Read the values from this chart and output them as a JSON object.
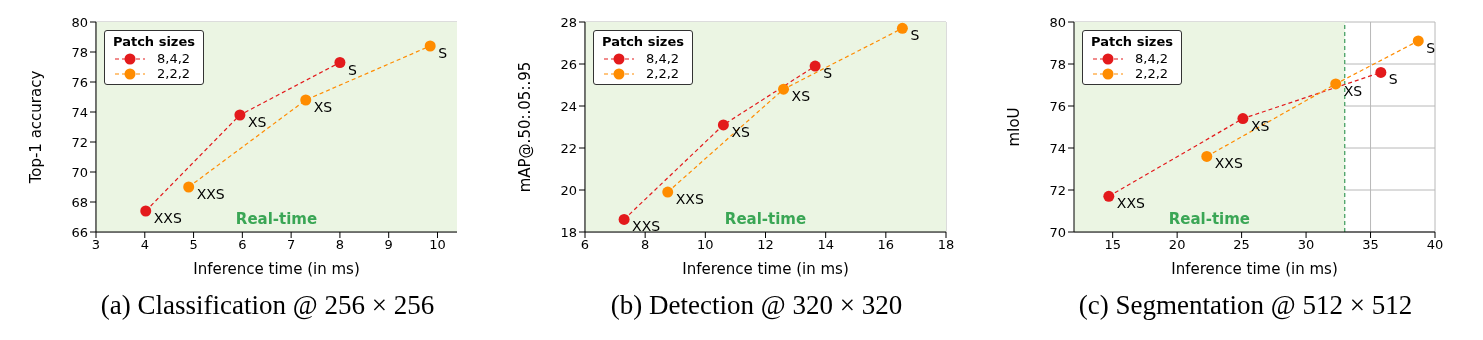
{
  "chart_data": [
    {
      "type": "line",
      "title": "(a) Classification @ 256 × 256",
      "xlabel": "Inference time (in ms)",
      "ylabel": "Top-1 accuracy",
      "legend_title": "Patch sizes",
      "legend": "top left",
      "grid": true,
      "marker": "circle",
      "line_style": "dashed",
      "xlim": [
        3,
        10.4
      ],
      "xticks": [
        3,
        4,
        5,
        6,
        7,
        8,
        9,
        10
      ],
      "ylim": [
        66,
        80
      ],
      "yticks": [
        66,
        68,
        70,
        72,
        74,
        76,
        78,
        80
      ],
      "bands": [
        {
          "axis": "x",
          "from": 3,
          "to": 10.4,
          "label": "Real-time",
          "color": "#ebf5e3"
        }
      ],
      "series": [
        {
          "name": "8,4,2",
          "color": "#e31a1c",
          "x": [
            4.02,
            5.95,
            8.0
          ],
          "values": [
            67.4,
            73.8,
            77.3
          ],
          "value_labels": [
            "XXS",
            "XS",
            "S"
          ]
        },
        {
          "name": "2,2,2",
          "color": "#ff8c00",
          "x": [
            4.9,
            7.3,
            9.85
          ],
          "values": [
            69.0,
            74.8,
            78.4
          ],
          "value_labels": [
            "XXS",
            "XS",
            "S"
          ]
        }
      ]
    },
    {
      "type": "line",
      "title": "(b) Detection @ 320 × 320",
      "xlabel": "Inference time (in ms)",
      "ylabel": "mAP@.50:.05:.95",
      "legend_title": "Patch sizes",
      "legend": "top left",
      "grid": true,
      "marker": "circle",
      "line_style": "dashed",
      "xlim": [
        6,
        18
      ],
      "xticks": [
        6,
        8,
        10,
        12,
        14,
        16,
        18
      ],
      "ylim": [
        18,
        28
      ],
      "yticks": [
        18,
        20,
        22,
        24,
        26,
        28
      ],
      "bands": [
        {
          "axis": "x",
          "from": 6,
          "to": 18,
          "label": "Real-time",
          "color": "#ebf5e3"
        }
      ],
      "series": [
        {
          "name": "8,4,2",
          "color": "#e31a1c",
          "x": [
            7.3,
            10.6,
            13.65
          ],
          "values": [
            18.6,
            23.1,
            25.9
          ],
          "value_labels": [
            "XXS",
            "XS",
            "S"
          ]
        },
        {
          "name": "2,2,2",
          "color": "#ff8c00",
          "x": [
            8.75,
            12.6,
            16.55
          ],
          "values": [
            19.9,
            24.8,
            27.7
          ],
          "value_labels": [
            "XXS",
            "XS",
            "S"
          ]
        }
      ]
    },
    {
      "type": "line",
      "title": "(c) Segmentation @ 512 × 512",
      "xlabel": "Inference time (in ms)",
      "ylabel": "mIoU",
      "legend_title": "Patch sizes",
      "legend": "top left",
      "grid": true,
      "marker": "circle",
      "line_style": "dashed",
      "xlim": [
        12,
        40
      ],
      "xticks": [
        15,
        20,
        25,
        30,
        35,
        40
      ],
      "ylim": [
        70,
        80
      ],
      "yticks": [
        70,
        72,
        74,
        76,
        78,
        80
      ],
      "bands": [
        {
          "axis": "x",
          "from": 12,
          "to": 33,
          "label": "Real-time",
          "color": "#ebf5e3"
        }
      ],
      "ref_lines": [
        {
          "axis": "x",
          "value": 33,
          "color": "#3a9a5a",
          "line_style": "dashed"
        }
      ],
      "series": [
        {
          "name": "8,4,2",
          "color": "#e31a1c",
          "x": [
            14.7,
            25.1,
            35.8
          ],
          "values": [
            71.7,
            75.4,
            77.6
          ],
          "value_labels": [
            "XXS",
            "XS",
            "S"
          ]
        },
        {
          "name": "2,2,2",
          "color": "#ff8c00",
          "x": [
            22.3,
            32.3,
            38.7
          ],
          "values": [
            73.6,
            77.05,
            79.1
          ],
          "value_labels": [
            "XXS",
            "XS",
            "S"
          ]
        }
      ]
    }
  ]
}
